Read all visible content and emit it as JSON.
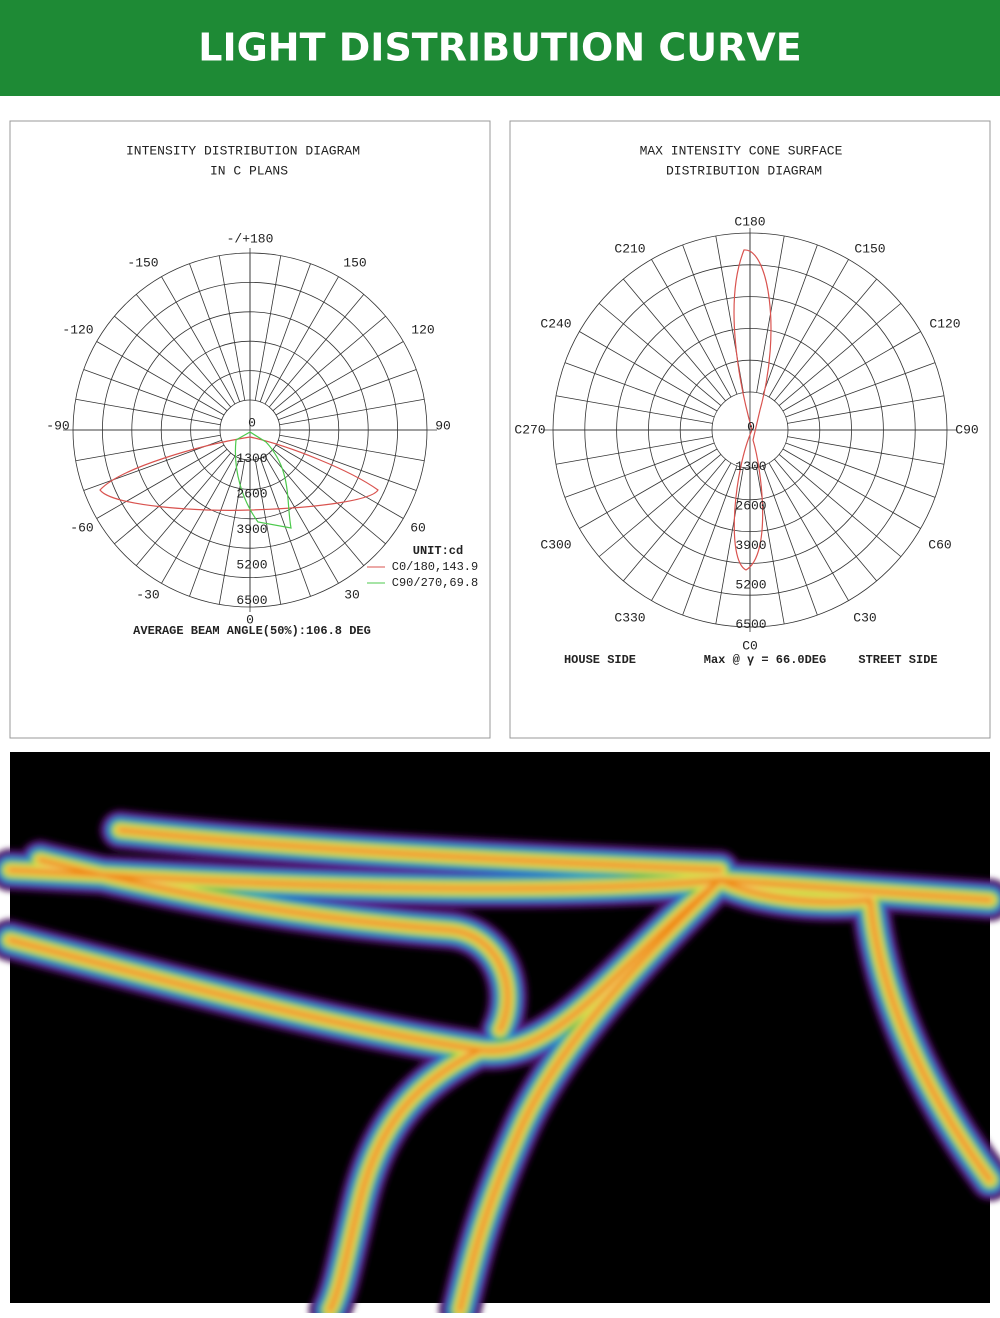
{
  "header": {
    "title": "LIGHT DISTRIBUTION CURVE"
  },
  "left_diagram": {
    "title": [
      "INTENSITY DISTRIBUTION DIAGRAM",
      "IN C PLANS"
    ],
    "angle_labels": [
      "-/+180",
      "150",
      "120",
      "90",
      "60",
      "30",
      "0",
      "-30",
      "-60",
      "-90",
      "-120",
      "-150"
    ],
    "ring_labels": [
      "0",
      "1300",
      "2600",
      "3900",
      "5200",
      "6500"
    ],
    "unit": "UNIT:cd",
    "legend": [
      "C0/180,143.9",
      "C90/270,69.8"
    ],
    "footer": "AVERAGE BEAM ANGLE(50%):106.8 DEG"
  },
  "right_diagram": {
    "title": [
      "MAX INTENSITY CONE SURFACE",
      "DISTRIBUTION DIAGRAM"
    ],
    "angle_labels": [
      "C180",
      "C150",
      "C120",
      "C90",
      "C60",
      "C30",
      "C0",
      "C330",
      "C300",
      "C270",
      "C240",
      "C210"
    ],
    "ring_labels": [
      "0",
      "1300",
      "2600",
      "3900",
      "5200",
      "6500"
    ],
    "footer": [
      "HOUSE SIDE",
      "Max @ γ = 66.0DEG",
      "STREET SIDE"
    ]
  }
}
